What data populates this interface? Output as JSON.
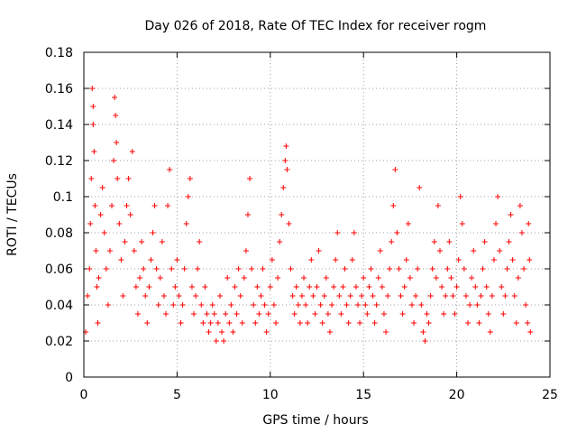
{
  "chart_data": {
    "type": "scatter",
    "title": "Day 026 of 2018, Rate Of TEC Index for receiver rogm",
    "xlabel": "GPS time / hours",
    "ylabel": "ROTI / TECUs",
    "xlim": [
      0,
      25
    ],
    "ylim": [
      0,
      0.18
    ],
    "xticks": [
      "0",
      "5",
      "10",
      "15",
      "20",
      "25"
    ],
    "yticks": [
      "0",
      "0.02",
      "0.04",
      "0.06",
      "0.08",
      "0.1",
      "0.12",
      "0.14",
      "0.16",
      "0.18"
    ],
    "grid": true,
    "marker": "+",
    "color": "#ff0000",
    "series": [
      {
        "points": [
          [
            0.1,
            0.025
          ],
          [
            0.2,
            0.045
          ],
          [
            0.3,
            0.06
          ],
          [
            0.35,
            0.085
          ],
          [
            0.4,
            0.11
          ],
          [
            0.45,
            0.16
          ],
          [
            0.5,
            0.15
          ],
          [
            0.5,
            0.14
          ],
          [
            0.55,
            0.125
          ],
          [
            0.6,
            0.095
          ],
          [
            0.65,
            0.07
          ],
          [
            0.7,
            0.05
          ],
          [
            0.75,
            0.03
          ],
          [
            0.8,
            0.055
          ],
          [
            0.9,
            0.09
          ],
          [
            1.0,
            0.105
          ],
          [
            1.1,
            0.08
          ],
          [
            1.2,
            0.06
          ],
          [
            1.3,
            0.04
          ],
          [
            1.4,
            0.07
          ],
          [
            1.5,
            0.095
          ],
          [
            1.6,
            0.12
          ],
          [
            1.65,
            0.155
          ],
          [
            1.7,
            0.145
          ],
          [
            1.75,
            0.13
          ],
          [
            1.8,
            0.11
          ],
          [
            1.9,
            0.085
          ],
          [
            2.0,
            0.065
          ],
          [
            2.1,
            0.045
          ],
          [
            2.2,
            0.075
          ],
          [
            2.3,
            0.095
          ],
          [
            2.4,
            0.11
          ],
          [
            2.5,
            0.09
          ],
          [
            2.6,
            0.125
          ],
          [
            2.7,
            0.07
          ],
          [
            2.8,
            0.05
          ],
          [
            2.9,
            0.035
          ],
          [
            3.0,
            0.055
          ],
          [
            3.1,
            0.075
          ],
          [
            3.2,
            0.06
          ],
          [
            3.3,
            0.045
          ],
          [
            3.4,
            0.03
          ],
          [
            3.5,
            0.05
          ],
          [
            3.6,
            0.065
          ],
          [
            3.7,
            0.08
          ],
          [
            3.8,
            0.095
          ],
          [
            3.9,
            0.06
          ],
          [
            4.0,
            0.04
          ],
          [
            4.1,
            0.055
          ],
          [
            4.2,
            0.075
          ],
          [
            4.3,
            0.045
          ],
          [
            4.4,
            0.035
          ],
          [
            4.5,
            0.095
          ],
          [
            4.6,
            0.115
          ],
          [
            4.7,
            0.06
          ],
          [
            4.8,
            0.04
          ],
          [
            4.9,
            0.05
          ],
          [
            5.0,
            0.065
          ],
          [
            5.1,
            0.045
          ],
          [
            5.2,
            0.03
          ],
          [
            5.3,
            0.04
          ],
          [
            5.4,
            0.06
          ],
          [
            5.5,
            0.085
          ],
          [
            5.6,
            0.1
          ],
          [
            5.7,
            0.11
          ],
          [
            5.8,
            0.05
          ],
          [
            5.9,
            0.035
          ],
          [
            6.0,
            0.045
          ],
          [
            6.1,
            0.06
          ],
          [
            6.2,
            0.075
          ],
          [
            6.3,
            0.04
          ],
          [
            6.4,
            0.03
          ],
          [
            6.5,
            0.05
          ],
          [
            6.6,
            0.035
          ],
          [
            6.7,
            0.025
          ],
          [
            6.8,
            0.03
          ],
          [
            6.9,
            0.04
          ],
          [
            7.0,
            0.035
          ],
          [
            7.1,
            0.02
          ],
          [
            7.2,
            0.03
          ],
          [
            7.3,
            0.045
          ],
          [
            7.4,
            0.025
          ],
          [
            7.5,
            0.02
          ],
          [
            7.6,
            0.035
          ],
          [
            7.7,
            0.055
          ],
          [
            7.8,
            0.03
          ],
          [
            7.9,
            0.04
          ],
          [
            8.0,
            0.025
          ],
          [
            8.1,
            0.05
          ],
          [
            8.2,
            0.035
          ],
          [
            8.3,
            0.06
          ],
          [
            8.4,
            0.045
          ],
          [
            8.5,
            0.03
          ],
          [
            8.6,
            0.055
          ],
          [
            8.7,
            0.07
          ],
          [
            8.8,
            0.09
          ],
          [
            8.9,
            0.11
          ],
          [
            9.0,
            0.06
          ],
          [
            9.1,
            0.04
          ],
          [
            9.2,
            0.03
          ],
          [
            9.3,
            0.05
          ],
          [
            9.4,
            0.035
          ],
          [
            9.5,
            0.045
          ],
          [
            9.6,
            0.06
          ],
          [
            9.7,
            0.04
          ],
          [
            9.8,
            0.025
          ],
          [
            9.9,
            0.035
          ],
          [
            10.0,
            0.05
          ],
          [
            10.1,
            0.065
          ],
          [
            10.2,
            0.04
          ],
          [
            10.3,
            0.03
          ],
          [
            10.4,
            0.055
          ],
          [
            10.5,
            0.075
          ],
          [
            10.6,
            0.09
          ],
          [
            10.7,
            0.105
          ],
          [
            10.8,
            0.12
          ],
          [
            10.85,
            0.128
          ],
          [
            10.9,
            0.115
          ],
          [
            11.0,
            0.085
          ],
          [
            11.1,
            0.06
          ],
          [
            11.2,
            0.045
          ],
          [
            11.3,
            0.035
          ],
          [
            11.4,
            0.05
          ],
          [
            11.5,
            0.04
          ],
          [
            11.6,
            0.03
          ],
          [
            11.7,
            0.045
          ],
          [
            11.8,
            0.055
          ],
          [
            11.9,
            0.04
          ],
          [
            12.0,
            0.03
          ],
          [
            12.1,
            0.05
          ],
          [
            12.2,
            0.065
          ],
          [
            12.3,
            0.045
          ],
          [
            12.4,
            0.035
          ],
          [
            12.5,
            0.05
          ],
          [
            12.6,
            0.07
          ],
          [
            12.7,
            0.04
          ],
          [
            12.8,
            0.03
          ],
          [
            12.9,
            0.045
          ],
          [
            13.0,
            0.055
          ],
          [
            13.1,
            0.035
          ],
          [
            13.2,
            0.025
          ],
          [
            13.3,
            0.04
          ],
          [
            13.4,
            0.05
          ],
          [
            13.5,
            0.065
          ],
          [
            13.6,
            0.08
          ],
          [
            13.7,
            0.045
          ],
          [
            13.8,
            0.035
          ],
          [
            13.9,
            0.05
          ],
          [
            14.0,
            0.06
          ],
          [
            14.1,
            0.04
          ],
          [
            14.2,
            0.03
          ],
          [
            14.3,
            0.045
          ],
          [
            14.4,
            0.065
          ],
          [
            14.5,
            0.08
          ],
          [
            14.6,
            0.05
          ],
          [
            14.7,
            0.04
          ],
          [
            14.8,
            0.03
          ],
          [
            14.9,
            0.045
          ],
          [
            15.0,
            0.055
          ],
          [
            15.1,
            0.04
          ],
          [
            15.2,
            0.035
          ],
          [
            15.3,
            0.05
          ],
          [
            15.4,
            0.06
          ],
          [
            15.5,
            0.045
          ],
          [
            15.6,
            0.03
          ],
          [
            15.7,
            0.04
          ],
          [
            15.8,
            0.055
          ],
          [
            15.9,
            0.07
          ],
          [
            16.0,
            0.05
          ],
          [
            16.1,
            0.035
          ],
          [
            16.2,
            0.025
          ],
          [
            16.3,
            0.045
          ],
          [
            16.4,
            0.06
          ],
          [
            16.5,
            0.075
          ],
          [
            16.6,
            0.095
          ],
          [
            16.7,
            0.115
          ],
          [
            16.8,
            0.08
          ],
          [
            16.9,
            0.06
          ],
          [
            17.0,
            0.045
          ],
          [
            17.1,
            0.035
          ],
          [
            17.2,
            0.05
          ],
          [
            17.3,
            0.065
          ],
          [
            17.4,
            0.085
          ],
          [
            17.5,
            0.055
          ],
          [
            17.6,
            0.04
          ],
          [
            17.7,
            0.03
          ],
          [
            17.8,
            0.045
          ],
          [
            17.9,
            0.06
          ],
          [
            18.0,
            0.105
          ],
          [
            18.1,
            0.04
          ],
          [
            18.2,
            0.025
          ],
          [
            18.3,
            0.02
          ],
          [
            18.4,
            0.035
          ],
          [
            18.5,
            0.03
          ],
          [
            18.6,
            0.045
          ],
          [
            18.7,
            0.06
          ],
          [
            18.8,
            0.075
          ],
          [
            18.9,
            0.055
          ],
          [
            19.0,
            0.095
          ],
          [
            19.1,
            0.07
          ],
          [
            19.2,
            0.05
          ],
          [
            19.3,
            0.035
          ],
          [
            19.4,
            0.045
          ],
          [
            19.5,
            0.06
          ],
          [
            19.6,
            0.075
          ],
          [
            19.7,
            0.055
          ],
          [
            19.8,
            0.045
          ],
          [
            19.9,
            0.035
          ],
          [
            20.0,
            0.05
          ],
          [
            20.1,
            0.065
          ],
          [
            20.2,
            0.1
          ],
          [
            20.3,
            0.085
          ],
          [
            20.4,
            0.06
          ],
          [
            20.5,
            0.045
          ],
          [
            20.6,
            0.03
          ],
          [
            20.7,
            0.04
          ],
          [
            20.8,
            0.055
          ],
          [
            20.9,
            0.07
          ],
          [
            21.0,
            0.05
          ],
          [
            21.1,
            0.04
          ],
          [
            21.2,
            0.03
          ],
          [
            21.3,
            0.045
          ],
          [
            21.4,
            0.06
          ],
          [
            21.5,
            0.075
          ],
          [
            21.6,
            0.05
          ],
          [
            21.7,
            0.035
          ],
          [
            21.8,
            0.025
          ],
          [
            21.9,
            0.045
          ],
          [
            22.0,
            0.065
          ],
          [
            22.1,
            0.085
          ],
          [
            22.2,
            0.1
          ],
          [
            22.3,
            0.07
          ],
          [
            22.4,
            0.05
          ],
          [
            22.5,
            0.035
          ],
          [
            22.6,
            0.045
          ],
          [
            22.7,
            0.06
          ],
          [
            22.8,
            0.075
          ],
          [
            22.9,
            0.09
          ],
          [
            23.0,
            0.065
          ],
          [
            23.1,
            0.045
          ],
          [
            23.2,
            0.03
          ],
          [
            23.3,
            0.055
          ],
          [
            23.4,
            0.095
          ],
          [
            23.5,
            0.08
          ],
          [
            23.6,
            0.06
          ],
          [
            23.7,
            0.04
          ],
          [
            23.8,
            0.03
          ],
          [
            23.85,
            0.085
          ],
          [
            23.9,
            0.065
          ],
          [
            23.95,
            0.025
          ]
        ]
      }
    ]
  }
}
